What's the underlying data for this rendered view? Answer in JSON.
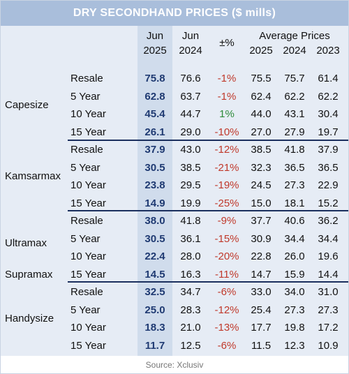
{
  "title": "DRY SECONDHAND PRICES ($ mills)",
  "headers": {
    "jun_a": "Jun",
    "y2025": "2025",
    "jun_b": "Jun",
    "y2024": "2024",
    "pct": "±%",
    "avg": "Average Prices",
    "a2025": "2025",
    "a2024": "2024",
    "a2023": "2023"
  },
  "groups": [
    {
      "label": "Capesize",
      "rows": [
        {
          "type": "Resale",
          "jun25": "75.8",
          "jun24": "76.6",
          "pct": "-1%",
          "a25": "75.5",
          "a24": "75.7",
          "a23": "61.4"
        },
        {
          "type": "5 Year",
          "jun25": "62.8",
          "jun24": "63.7",
          "pct": "-1%",
          "a25": "62.4",
          "a24": "62.2",
          "a23": "62.2"
        },
        {
          "type": "10 Year",
          "jun25": "45.4",
          "jun24": "44.7",
          "pct": "1%",
          "a25": "44.0",
          "a24": "43.1",
          "a23": "30.4"
        },
        {
          "type": "15 Year",
          "jun25": "26.1",
          "jun24": "29.0",
          "pct": "-10%",
          "a25": "27.0",
          "a24": "27.9",
          "a23": "19.7"
        }
      ]
    },
    {
      "label": "Kamsarmax",
      "rows": [
        {
          "type": "Resale",
          "jun25": "37.9",
          "jun24": "43.0",
          "pct": "-12%",
          "a25": "38.5",
          "a24": "41.8",
          "a23": "37.9"
        },
        {
          "type": "5 Year",
          "jun25": "30.5",
          "jun24": "38.5",
          "pct": "-21%",
          "a25": "32.3",
          "a24": "36.5",
          "a23": "36.5"
        },
        {
          "type": "10 Year",
          "jun25": "23.8",
          "jun24": "29.5",
          "pct": "-19%",
          "a25": "24.5",
          "a24": "27.3",
          "a23": "22.9"
        },
        {
          "type": "15 Year",
          "jun25": "14.9",
          "jun24": "19.9",
          "pct": "-25%",
          "a25": "15.0",
          "a24": "18.1",
          "a23": "15.2"
        }
      ]
    },
    {
      "label": "Ultramax",
      "label2": "Supramax",
      "rows": [
        {
          "type": "Resale",
          "jun25": "38.0",
          "jun24": "41.8",
          "pct": "-9%",
          "a25": "37.7",
          "a24": "40.6",
          "a23": "36.2"
        },
        {
          "type": "5 Year",
          "jun25": "30.5",
          "jun24": "36.1",
          "pct": "-15%",
          "a25": "30.9",
          "a24": "34.4",
          "a23": "34.4"
        },
        {
          "type": "10 Year",
          "jun25": "22.4",
          "jun24": "28.0",
          "pct": "-20%",
          "a25": "22.8",
          "a24": "26.0",
          "a23": "19.6"
        },
        {
          "type": "15 Year",
          "jun25": "14.5",
          "jun24": "16.3",
          "pct": "-11%",
          "a25": "14.7",
          "a24": "15.9",
          "a23": "14.4"
        }
      ]
    },
    {
      "label": "Handysize",
      "rows": [
        {
          "type": "Resale",
          "jun25": "32.5",
          "jun24": "34.7",
          "pct": "-6%",
          "a25": "33.0",
          "a24": "34.0",
          "a23": "31.0"
        },
        {
          "type": "5 Year",
          "jun25": "25.0",
          "jun24": "28.3",
          "pct": "-12%",
          "a25": "25.4",
          "a24": "27.3",
          "a23": "27.3"
        },
        {
          "type": "10 Year",
          "jun25": "18.3",
          "jun24": "21.0",
          "pct": "-13%",
          "a25": "17.7",
          "a24": "19.8",
          "a23": "17.2"
        },
        {
          "type": "15 Year",
          "jun25": "11.7",
          "jun24": "12.5",
          "pct": "-6%",
          "a25": "11.5",
          "a24": "12.3",
          "a23": "10.9"
        }
      ]
    }
  ],
  "source": "Source: Xclusiv",
  "colors": {
    "negative": "#c0392b",
    "positive": "#2e8b3a",
    "title_bg": "#a9bedb",
    "highlight": "#1f3a72"
  }
}
